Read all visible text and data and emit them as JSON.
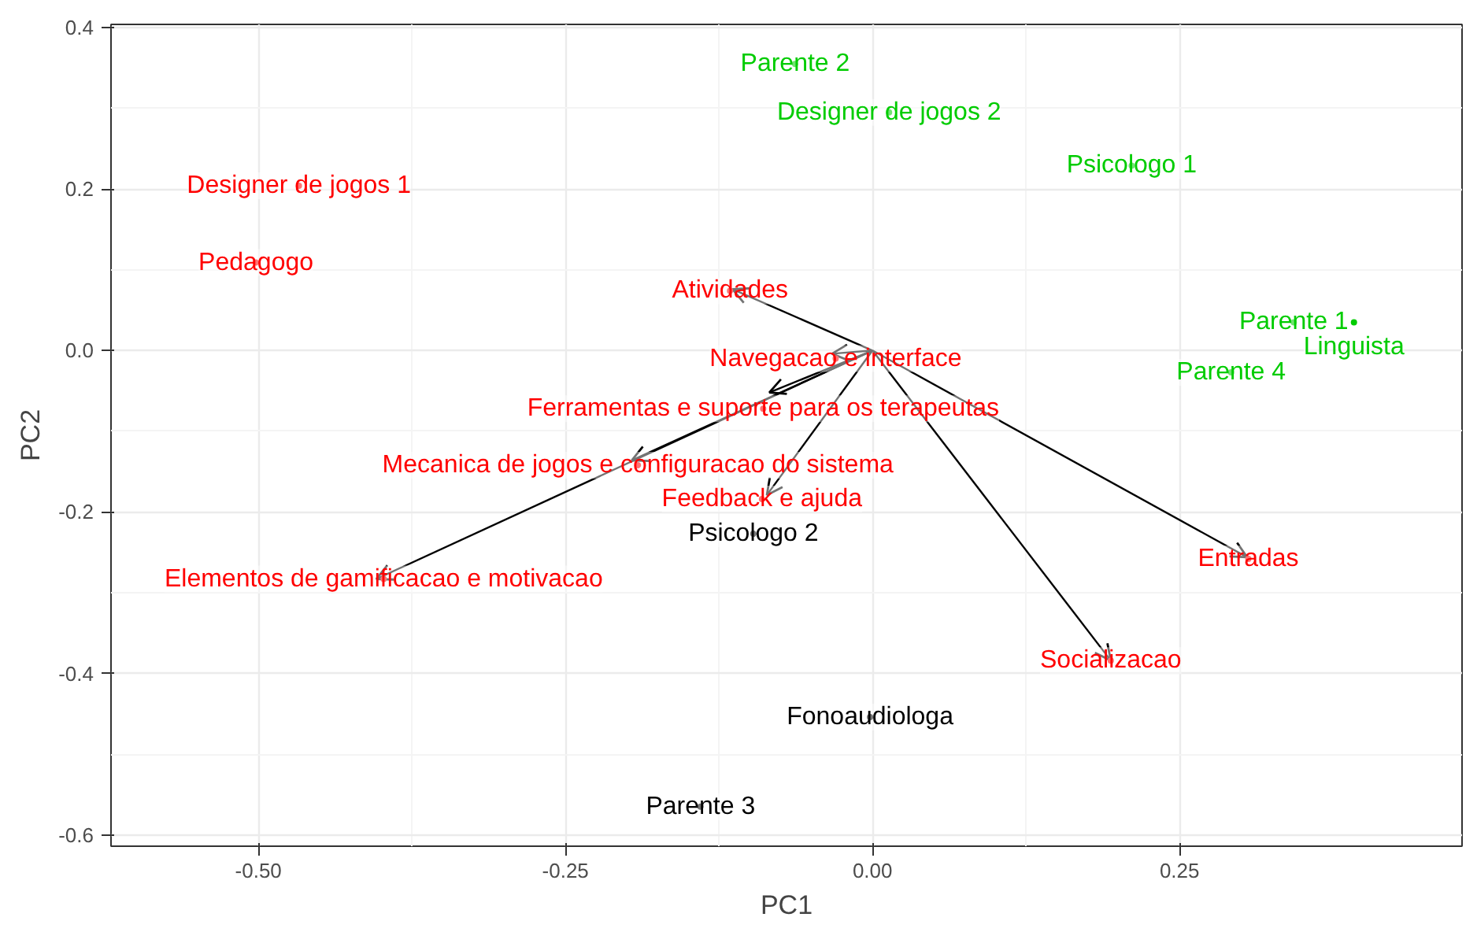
{
  "chart_data": {
    "type": "scatter",
    "xlabel": "PC1",
    "ylabel": "PC2",
    "xlim": [
      -0.62,
      0.48
    ],
    "ylim": [
      -0.614,
      0.404
    ],
    "xticks": [
      {
        "value": -0.5,
        "label": "-0.50"
      },
      {
        "value": -0.25,
        "label": "-0.25"
      },
      {
        "value": 0,
        "label": "0.00"
      },
      {
        "value": 0.25,
        "label": "0.25"
      }
    ],
    "yticks": [
      {
        "value": -0.6,
        "label": "-0.6"
      },
      {
        "value": -0.4,
        "label": "-0.4"
      },
      {
        "value": -0.2,
        "label": "-0.2"
      },
      {
        "value": 0,
        "label": "0.0"
      },
      {
        "value": 0.2,
        "label": "0.2"
      },
      {
        "value": 0.4,
        "label": "0.4"
      }
    ],
    "grid": true,
    "marker": "none",
    "series": [
      {
        "color": "#ff0000",
        "x": [
          -0.467,
          -0.502,
          -0.116,
          -0.03,
          -0.089,
          -0.191,
          -0.09,
          -0.398,
          0.306,
          0.194
        ],
        "values": [
          0.204,
          0.109,
          0.074,
          -0.01,
          -0.072,
          -0.142,
          -0.184,
          -0.283,
          -0.258,
          -0.384
        ],
        "value_labels": [
          "Designer de jogos 1",
          "Pedagogo",
          "Atividades",
          "Navegacao e interface",
          "Ferramentas e suporte para os terapeutas",
          "Mecanica de jogos e configuracao do sistema",
          "Feedback e ajuda",
          "Elementos de gamificacao e motivacao",
          "Entradas",
          "Socializacao"
        ]
      },
      {
        "color": "#00cc00",
        "x": [
          -0.063,
          0.0135,
          0.211,
          0.343,
          0.392,
          0.292
        ],
        "values": [
          0.355,
          0.295,
          0.229,
          0.035,
          0.035,
          -0.027
        ],
        "value_labels": [
          "Parente 2",
          "Designer de jogos 2",
          "Psicologo 1",
          "Parente 1",
          "Linguista",
          "Parente 4"
        ]
      },
      {
        "color": "#000000",
        "x": [
          -0.097,
          -0.002,
          -0.14
        ],
        "values": [
          -0.227,
          -0.454,
          -0.565
        ],
        "value_labels": [
          "Psicologo 2",
          "Fonoaudiologa",
          "Parente 3"
        ]
      },
      {
        "type": "line",
        "color": "#000000",
        "x": [
          0,
          -0.114
        ],
        "values": [
          0,
          0.076
        ]
      },
      {
        "type": "line",
        "color": "#000000",
        "x": [
          0,
          -0.033
        ],
        "values": [
          0,
          -0.004
        ]
      },
      {
        "type": "line",
        "color": "#000000",
        "x": [
          0,
          -0.084
        ],
        "values": [
          0,
          -0.052
        ]
      },
      {
        "type": "line",
        "color": "#000000",
        "x": [
          0,
          -0.196
        ],
        "values": [
          0,
          -0.136
        ]
      },
      {
        "type": "line",
        "color": "#000000",
        "x": [
          0,
          -0.086
        ],
        "values": [
          0,
          -0.179
        ]
      },
      {
        "type": "line",
        "color": "#000000",
        "x": [
          0,
          -0.404
        ],
        "values": [
          0,
          -0.283
        ]
      },
      {
        "type": "line",
        "color": "#000000",
        "x": [
          0,
          0.305
        ],
        "values": [
          0,
          -0.256
        ]
      },
      {
        "type": "line",
        "color": "#000000",
        "x": [
          0,
          0.194
        ],
        "values": [
          0,
          -0.384
        ]
      }
    ]
  }
}
